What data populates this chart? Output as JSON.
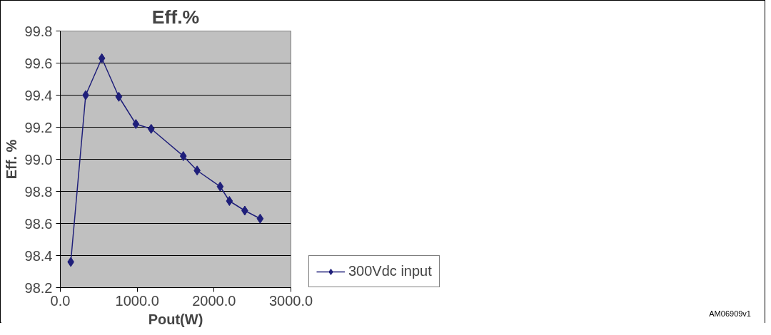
{
  "chart_data": {
    "type": "line",
    "title": "Eff.%",
    "xlabel": "Pout(W)",
    "ylabel": "Eff. %",
    "x": [
      136,
      330,
      540,
      761,
      983,
      1182,
      1600,
      1780,
      2080,
      2200,
      2400,
      2600
    ],
    "series": [
      {
        "name": "300Vdc input",
        "color": "#1f1f7a",
        "values": [
          98.36,
          99.4,
          99.63,
          99.39,
          99.22,
          99.19,
          99.02,
          98.93,
          98.83,
          98.74,
          98.68,
          98.63
        ]
      }
    ],
    "xlim": [
      0,
      3000
    ],
    "xticks": [
      {
        "value": 0,
        "label": "0.0"
      },
      {
        "value": 1000,
        "label": "1000.0"
      },
      {
        "value": 2000,
        "label": "2000.0"
      },
      {
        "value": 3000,
        "label": "3000.0"
      }
    ],
    "ylim": [
      98.2,
      99.8
    ],
    "yticks": [
      {
        "value": 98.2,
        "label": "98.2"
      },
      {
        "value": 98.4,
        "label": "98.4"
      },
      {
        "value": 98.6,
        "label": "98.6"
      },
      {
        "value": 98.8,
        "label": "98.8"
      },
      {
        "value": 99.0,
        "label": "99.0"
      },
      {
        "value": 99.2,
        "label": "99.2"
      },
      {
        "value": 99.4,
        "label": "99.4"
      },
      {
        "value": 99.6,
        "label": "99.6"
      },
      {
        "value": 99.8,
        "label": "99.8"
      }
    ],
    "grid": "y",
    "legend": "right",
    "marker": "diamond",
    "line_style": "solid",
    "annotations": [
      "AM06909v1"
    ]
  }
}
